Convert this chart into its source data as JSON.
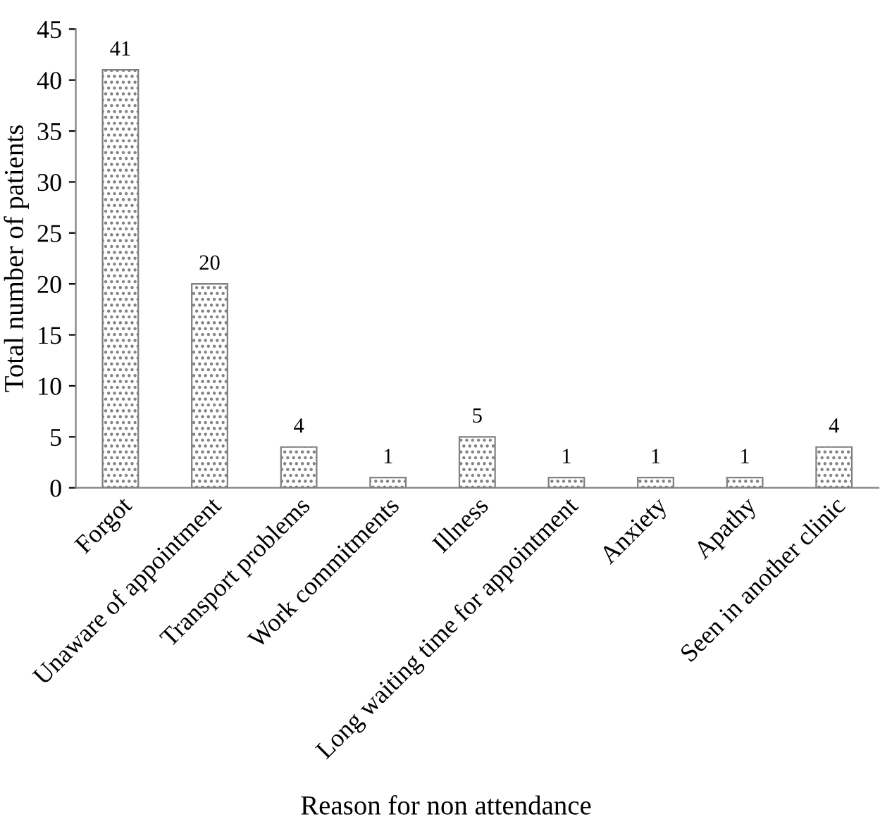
{
  "chart_data": {
    "type": "bar",
    "xlabel": "Reason for non attendance",
    "ylabel": "Total number of patients",
    "categories": [
      "Forgot",
      "Unaware of appointment",
      "Transport problems",
      "Work commitments",
      "Illness",
      "Long waiting time for appointment",
      "Anxiety",
      "Apathy",
      "Seen in another clinic"
    ],
    "values": [
      41,
      20,
      4,
      1,
      5,
      1,
      1,
      1,
      4
    ],
    "color": "#808080",
    "ylim": [
      0,
      45
    ],
    "yticks": [
      0,
      5,
      10,
      15,
      20,
      25,
      30,
      35,
      40,
      45
    ],
    "data_labels": true,
    "grid": false,
    "legend": false
  }
}
